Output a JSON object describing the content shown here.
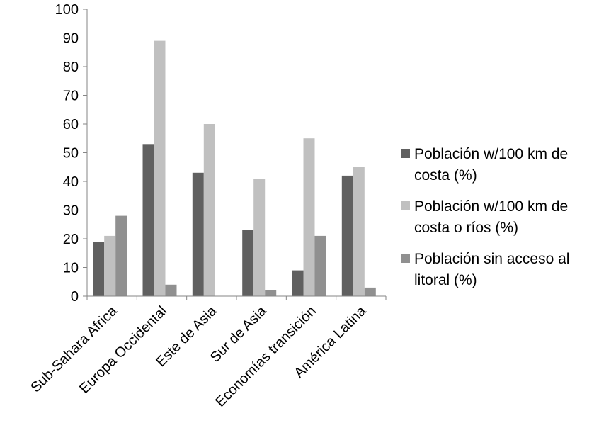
{
  "chart_data": {
    "type": "bar",
    "categories": [
      "Sub-Sahara Africa",
      "Europa Occidental",
      "Este de Asia",
      "Sur de Asia",
      "Economías transición",
      "América Latina"
    ],
    "series": [
      {
        "name": "Población w/100 km de costa (%)",
        "color": "#606060",
        "values": [
          19,
          53,
          43,
          23,
          9,
          42
        ]
      },
      {
        "name": "Población w/100 km de costa o ríos (%)",
        "color": "#c0c0c0",
        "values": [
          21,
          89,
          60,
          41,
          55,
          45
        ]
      },
      {
        "name": "Población sin acceso al litoral (%)",
        "color": "#909090",
        "values": [
          28,
          4,
          0,
          2,
          21,
          3
        ]
      }
    ],
    "yticks": [
      "0",
      "10",
      "20",
      "30",
      "40",
      "50",
      "60",
      "70",
      "80",
      "90",
      "100"
    ],
    "ylim": [
      0,
      100
    ],
    "legend_position": "right",
    "grid": false
  }
}
